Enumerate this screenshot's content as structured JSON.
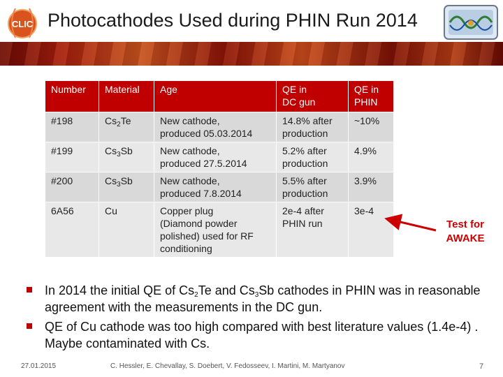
{
  "header": {
    "logo_text": "CLIC",
    "title": "Photocathodes Used during PHIN Run 2014"
  },
  "table": {
    "headers": [
      {
        "text": "Number"
      },
      {
        "text": "Material"
      },
      {
        "text": "Age"
      },
      {
        "line1": "QE in",
        "line2": "DC gun"
      },
      {
        "line1": "QE in",
        "line2": "PHIN"
      }
    ],
    "rows": [
      {
        "number": "#198",
        "material": {
          "base": "Cs",
          "sub": "2",
          "rest": "Te"
        },
        "age": [
          "New cathode,",
          "produced 05.03.2014"
        ],
        "qe_dc": [
          "14.8% after",
          "production"
        ],
        "qe_phin": "~10%"
      },
      {
        "number": "#199",
        "material": {
          "base": "Cs",
          "sub": "3",
          "rest": "Sb"
        },
        "age": [
          "New cathode,",
          "produced 27.5.2014"
        ],
        "qe_dc": [
          "5.2% after",
          "production"
        ],
        "qe_phin": "4.9%"
      },
      {
        "number": "#200",
        "material": {
          "base": "Cs",
          "sub": "3",
          "rest": "Sb"
        },
        "age": [
          "New cathode,",
          "produced 7.8.2014"
        ],
        "qe_dc": [
          "5.5% after",
          "production"
        ],
        "qe_phin": "3.9%"
      },
      {
        "number": "6A56",
        "material": {
          "base": "Cu",
          "sub": "",
          "rest": ""
        },
        "age": [
          "Copper plug",
          "(Diamond powder",
          "polished) used for RF",
          "conditioning"
        ],
        "qe_dc": [
          "2e-4 after",
          "PHIN run"
        ],
        "qe_phin": "3e-4"
      }
    ]
  },
  "callout": {
    "line1": "Test for",
    "line2": "AWAKE",
    "color": "#cc0000"
  },
  "bullets": [
    {
      "p1": "In 2014 the initial QE of Cs",
      "s1": "2",
      "p2": "Te and Cs",
      "s2": "3",
      "p3": "Sb cathodes in PHIN was in reasonable agreement with the measurements in the DC gun."
    },
    {
      "text": "QE of Cu cathode was too high compared with best literature values (1.4e-4) . Maybe contaminated with Cs."
    }
  ],
  "footer": {
    "date": "27.01.2015",
    "authors": "C. Hessler, E. Chevallay, S. Doebert, V. Fedosseev, I. Martini, M. Martyanov",
    "page": "7"
  },
  "colors": {
    "accent": "#c00000",
    "row_light": "#e8e8e8",
    "row_dark": "#d9d9d9"
  }
}
